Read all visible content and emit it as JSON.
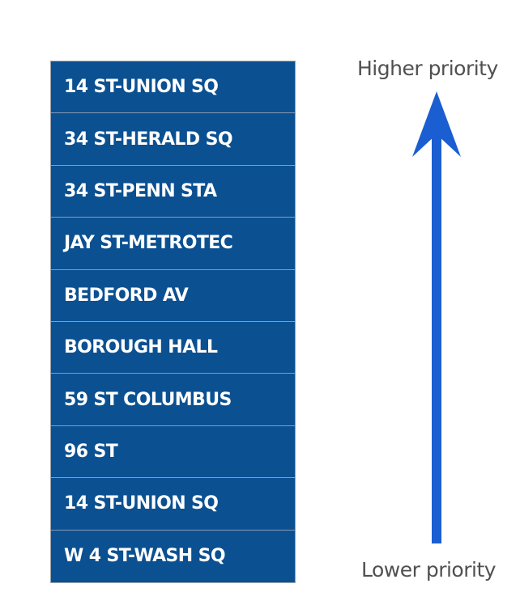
{
  "stations": [
    "14 ST-UNION SQ",
    "34 ST-HERALD SQ",
    "34 ST-PENN STA",
    "JAY ST-METROTEC",
    "BEDFORD AV",
    "BOROUGH HALL",
    "59 ST COLUMBUS",
    "96 ST",
    "14 ST-UNION SQ",
    "W 4 ST-WASH SQ"
  ],
  "priority": {
    "high_label": "Higher priority",
    "low_label": "Lower priority"
  },
  "colors": {
    "row_fill": "#0b5091",
    "arrow": "#1a5ed1",
    "label_text": "#505050"
  }
}
